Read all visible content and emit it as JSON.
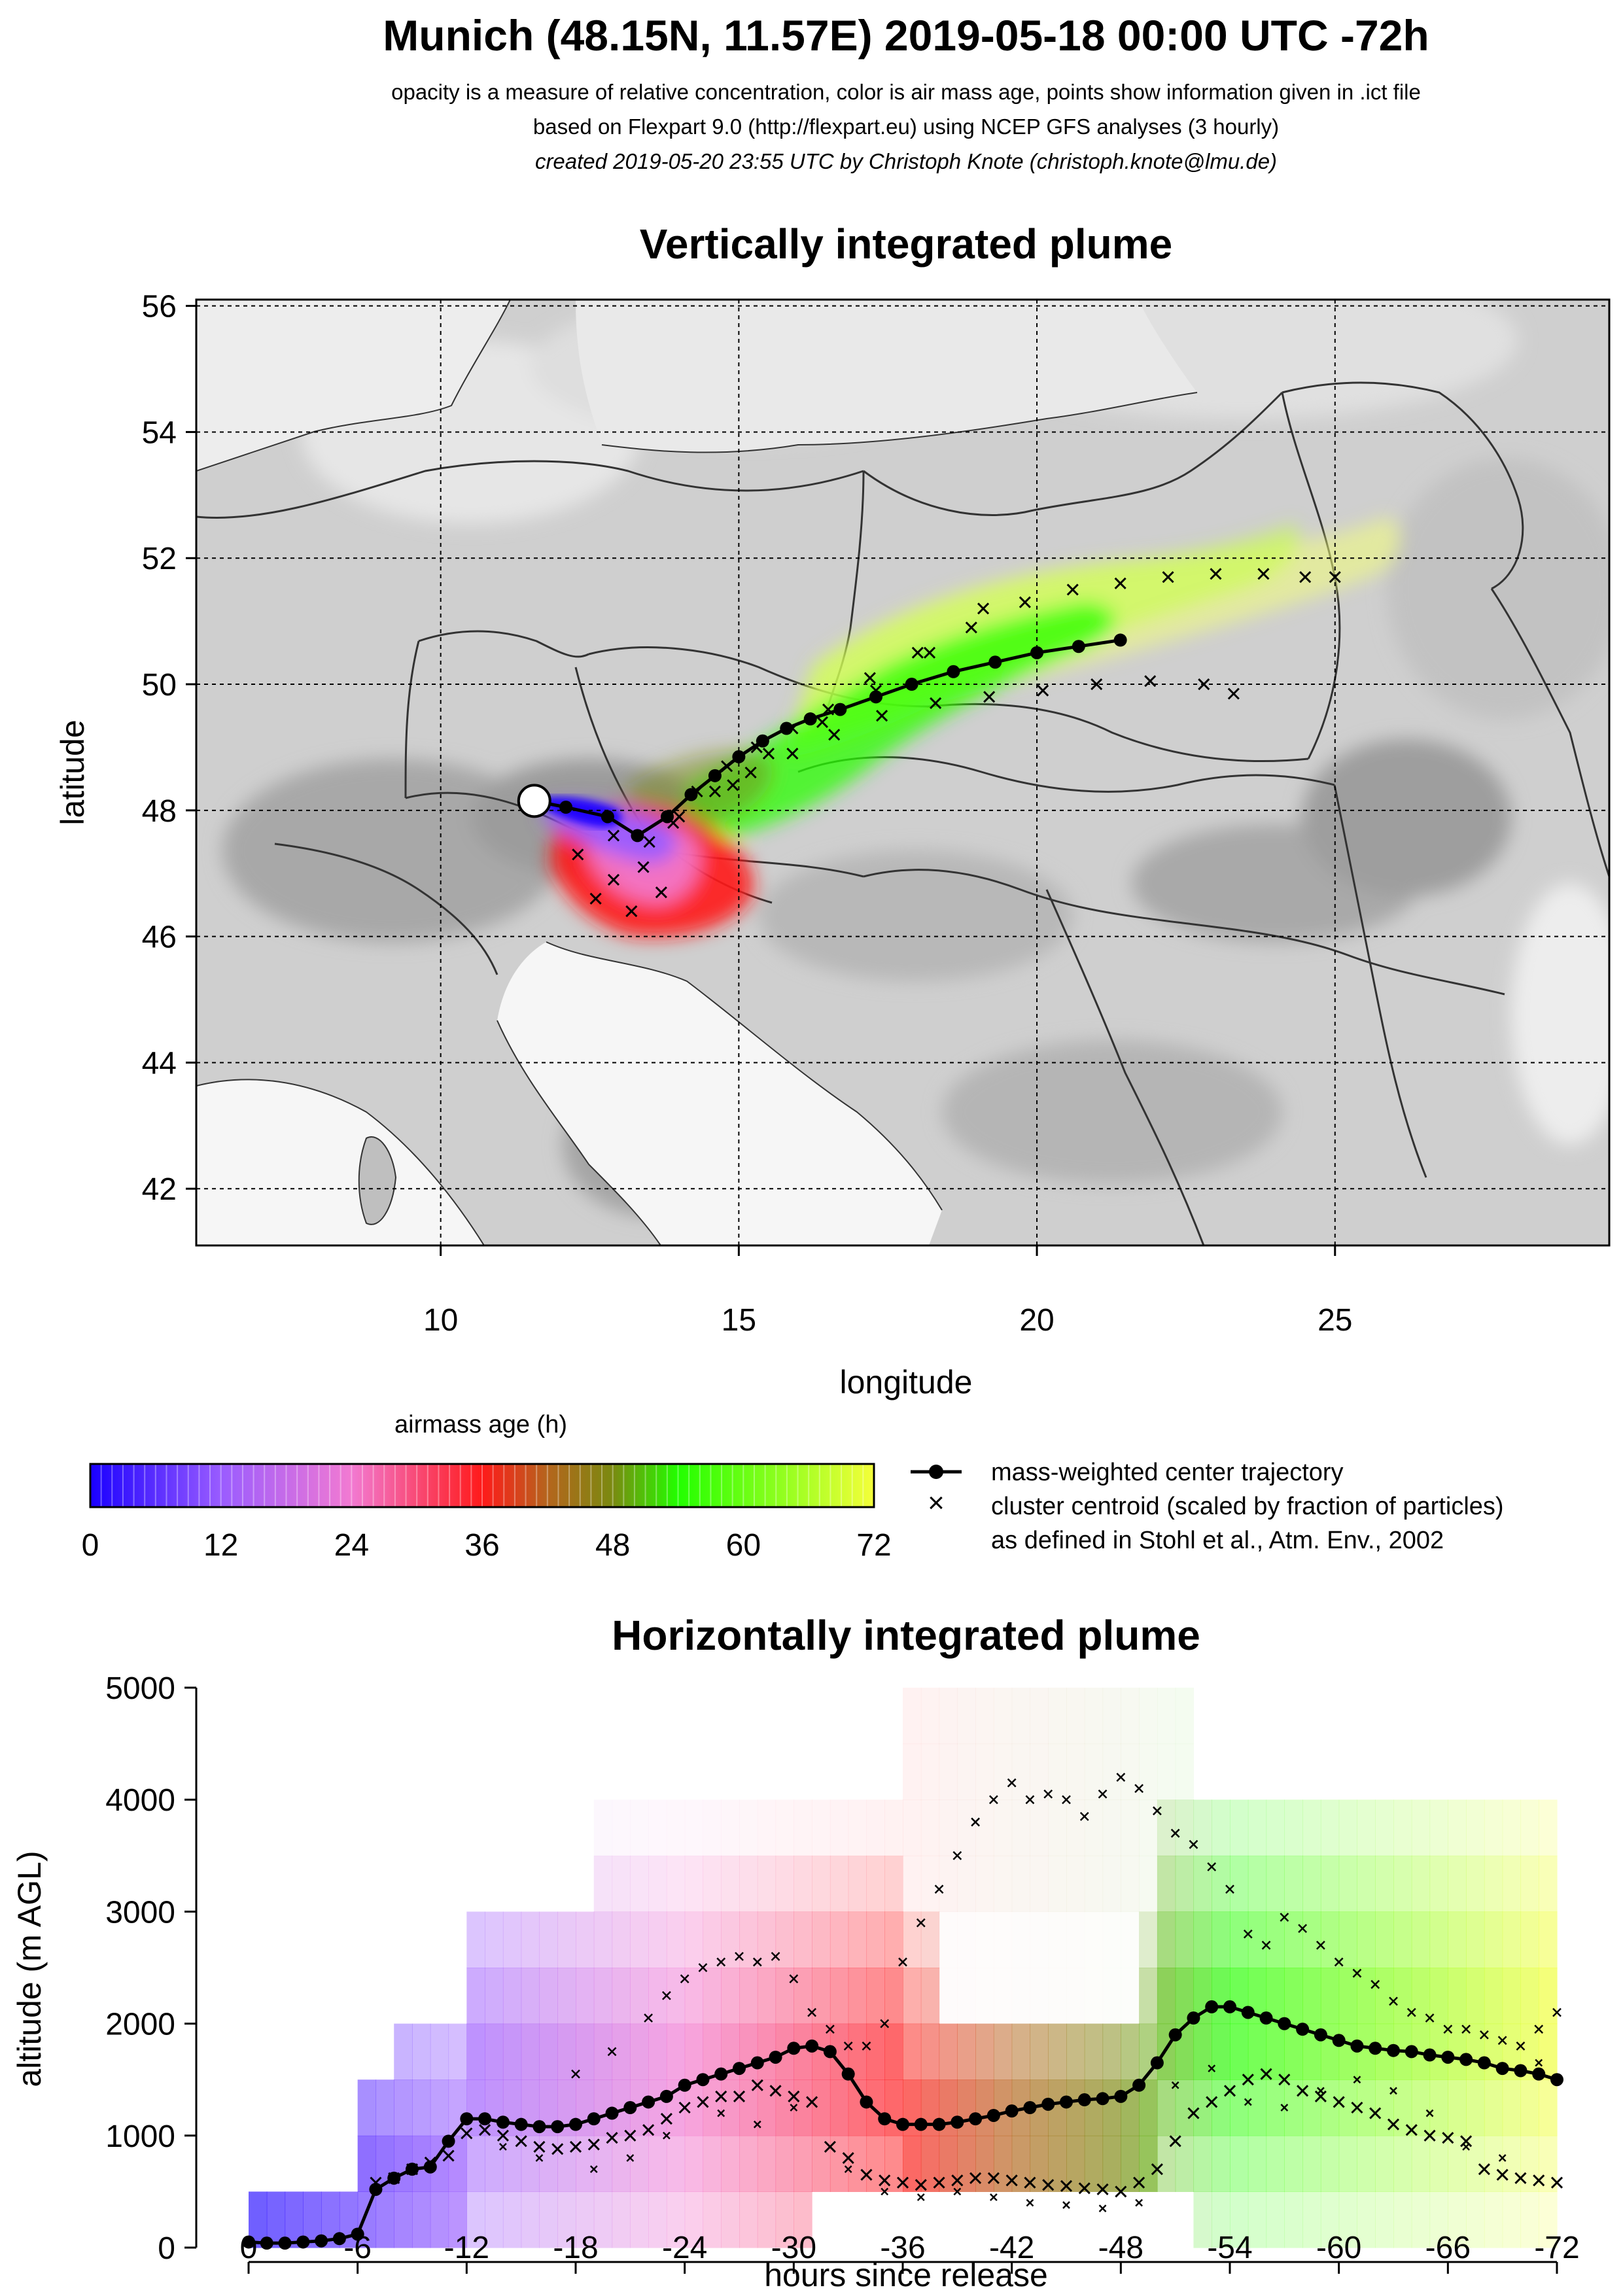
{
  "header": {
    "title": "Munich (48.15N, 11.57E) 2019-05-18 00:00 UTC -72h",
    "line1": "opacity is a measure of relative concentration, color is air mass age, points show information given in .ict file",
    "line2": "based on Flexpart 9.0 (http://flexpart.eu) using NCEP GFS analyses (3 hourly)",
    "line3": "created 2019-05-20 23:55 UTC by Christoph Knote (christoph.knote@lmu.de)"
  },
  "colors": {
    "age_0": "#1a00ff",
    "age_12": "#9a5cff",
    "age_24": "#f27ad2",
    "age_36": "#ff1a1a",
    "age_42": "#b5651d",
    "age_48": "#7a8a10",
    "age_54": "#22ff00",
    "age_72": "#f5ff3a",
    "map_background": "#cfcfcf",
    "sea": "#f4f4f4"
  },
  "chart_data": [
    {
      "type": "scatter",
      "title": "Vertically integrated plume",
      "xlabel": "longitude",
      "ylabel": "latitude",
      "xlim": [
        5.9,
        29.6
      ],
      "ylim": [
        41.1,
        56.1
      ],
      "xticks": [
        "10",
        "15",
        "20",
        "25"
      ],
      "xtick_values": [
        10,
        15,
        20,
        25
      ],
      "yticks": [
        "42",
        "44",
        "46",
        "48",
        "50",
        "52",
        "54",
        "56"
      ],
      "ytick_values": [
        42,
        44,
        46,
        48,
        50,
        52,
        54,
        56
      ],
      "grid": true,
      "release_point": {
        "lon": 11.57,
        "lat": 48.15
      },
      "center_trajectory": {
        "lon": [
          11.57,
          12.1,
          12.8,
          13.3,
          13.8,
          14.2,
          14.6,
          15.0,
          15.4,
          15.8,
          16.2,
          16.7,
          17.3,
          17.9,
          18.6,
          19.3,
          20.0,
          20.7,
          21.4
        ],
        "lat": [
          48.15,
          48.05,
          47.9,
          47.6,
          47.9,
          48.25,
          48.55,
          48.85,
          49.1,
          49.3,
          49.45,
          49.6,
          49.8,
          50.0,
          50.2,
          50.35,
          50.5,
          50.6,
          50.7
        ]
      },
      "cluster_centroids": {
        "lon": [
          12.3,
          12.9,
          13.4,
          13.9,
          14.3,
          14.8,
          15.3,
          15.9,
          16.5,
          17.2,
          18.0,
          18.9,
          19.8,
          20.6,
          21.4,
          22.2,
          23.0,
          23.8,
          24.5,
          25.0,
          14.0,
          14.6,
          15.2,
          15.9,
          16.6,
          17.4,
          18.3,
          19.2,
          20.1,
          21.0,
          21.9,
          22.8,
          23.3,
          14.9,
          15.5,
          16.4,
          17.3,
          18.2,
          19.1,
          12.6,
          13.2,
          13.7,
          12.9,
          13.5
        ],
        "lat": [
          47.3,
          46.9,
          47.1,
          47.8,
          48.3,
          48.7,
          49.0,
          49.3,
          49.6,
          50.1,
          50.5,
          50.9,
          51.3,
          51.5,
          51.6,
          51.7,
          51.75,
          51.75,
          51.7,
          51.7,
          47.9,
          48.3,
          48.6,
          48.9,
          49.2,
          49.5,
          49.7,
          49.8,
          49.9,
          50.0,
          50.05,
          50.0,
          49.85,
          48.4,
          48.9,
          49.4,
          49.9,
          50.5,
          51.2,
          46.6,
          46.4,
          46.7,
          47.6,
          47.5
        ]
      }
    },
    {
      "type": "area",
      "title": "Horizontally integrated plume",
      "xlabel": "hours since release",
      "ylabel": "altitude (m AGL)",
      "xlim": [
        0,
        -72
      ],
      "ylim": [
        0,
        5000
      ],
      "xticks": [
        "0",
        "-6",
        "-12",
        "-18",
        "-24",
        "-30",
        "-36",
        "-42",
        "-48",
        "-54",
        "-60",
        "-66",
        "-72"
      ],
      "xtick_values": [
        0,
        -6,
        -12,
        -18,
        -24,
        -30,
        -36,
        -42,
        -48,
        -54,
        -60,
        -66,
        -72
      ],
      "yticks": [
        "0",
        "1000",
        "2000",
        "3000",
        "4000",
        "5000"
      ],
      "ytick_values": [
        0,
        1000,
        2000,
        3000,
        4000,
        5000
      ],
      "center_trajectory": {
        "x": [
          0,
          -1,
          -2,
          -3,
          -4,
          -5,
          -6,
          -7,
          -8,
          -9,
          -10,
          -11,
          -12,
          -13,
          -14,
          -15,
          -16,
          -17,
          -18,
          -19,
          -20,
          -21,
          -22,
          -23,
          -24,
          -25,
          -26,
          -27,
          -28,
          -29,
          -30,
          -31,
          -32,
          -33,
          -34,
          -35,
          -36,
          -37,
          -38,
          -39,
          -40,
          -41,
          -42,
          -43,
          -44,
          -45,
          -46,
          -47,
          -48,
          -49,
          -50,
          -51,
          -52,
          -53,
          -54,
          -55,
          -56,
          -57,
          -58,
          -59,
          -60,
          -61,
          -62,
          -63,
          -64,
          -65,
          -66,
          -67,
          -68,
          -69,
          -70,
          -71,
          -72
        ],
        "y": [
          50,
          40,
          40,
          50,
          60,
          80,
          120,
          520,
          620,
          700,
          720,
          950,
          1150,
          1150,
          1120,
          1100,
          1080,
          1080,
          1100,
          1150,
          1200,
          1250,
          1300,
          1350,
          1450,
          1500,
          1550,
          1600,
          1650,
          1700,
          1780,
          1800,
          1750,
          1550,
          1300,
          1150,
          1100,
          1100,
          1100,
          1120,
          1150,
          1180,
          1220,
          1250,
          1280,
          1300,
          1320,
          1330,
          1350,
          1450,
          1650,
          1900,
          2050,
          2150,
          2150,
          2100,
          2050,
          2000,
          1950,
          1900,
          1850,
          1800,
          1780,
          1760,
          1750,
          1720,
          1700,
          1680,
          1650,
          1600,
          1580,
          1550,
          1500
        ]
      },
      "upper_centroids": {
        "x": [
          -18,
          -20,
          -22,
          -23,
          -24,
          -25,
          -26,
          -27,
          -28,
          -29,
          -30,
          -31,
          -32,
          -33,
          -34,
          -35,
          -36,
          -37,
          -38,
          -39,
          -40,
          -41,
          -42,
          -43,
          -44,
          -45,
          -46,
          -47,
          -48,
          -49,
          -50,
          -51,
          -52,
          -53,
          -54,
          -55,
          -56,
          -57,
          -58,
          -59,
          -60,
          -61,
          -62,
          -63,
          -64,
          -65,
          -66,
          -67,
          -68,
          -69,
          -70,
          -71,
          -72
        ],
        "y": [
          1550,
          1750,
          2050,
          2250,
          2400,
          2500,
          2550,
          2600,
          2550,
          2600,
          2400,
          2100,
          1950,
          1800,
          1800,
          2000,
          2550,
          2900,
          3200,
          3500,
          3800,
          4000,
          4150,
          4000,
          4050,
          4000,
          3850,
          4050,
          4200,
          4100,
          3900,
          3700,
          3600,
          3400,
          3200,
          2800,
          2700,
          2950,
          2850,
          2700,
          2550,
          2450,
          2350,
          2200,
          2100,
          2050,
          1950,
          1950,
          1900,
          1850,
          1800,
          1950,
          2100
        ]
      },
      "lower_centroids": {
        "x": [
          -7,
          -8,
          -9,
          -10,
          -11,
          -12,
          -13,
          -14,
          -15,
          -16,
          -17,
          -18,
          -19,
          -20,
          -21,
          -22,
          -23,
          -24,
          -25,
          -26,
          -27,
          -28,
          -29,
          -30,
          -31,
          -32,
          -33,
          -34,
          -35,
          -36,
          -37,
          -38,
          -39,
          -40,
          -41,
          -42,
          -43,
          -44,
          -45,
          -46,
          -47,
          -48,
          -49,
          -50,
          -51,
          -52,
          -53,
          -54,
          -55,
          -56,
          -57,
          -58,
          -59,
          -60,
          -61,
          -62,
          -63,
          -64,
          -65,
          -66,
          -67,
          -68,
          -69,
          -70,
          -71,
          -72
        ],
        "y": [
          580,
          620,
          700,
          760,
          820,
          1020,
          1050,
          1000,
          950,
          900,
          880,
          900,
          920,
          980,
          1000,
          1050,
          1150,
          1250,
          1300,
          1350,
          1350,
          1450,
          1400,
          1350,
          1300,
          900,
          800,
          650,
          600,
          580,
          560,
          580,
          600,
          620,
          620,
          600,
          580,
          560,
          550,
          530,
          520,
          500,
          580,
          700,
          950,
          1200,
          1300,
          1400,
          1500,
          1550,
          1500,
          1400,
          1350,
          1300,
          1250,
          1200,
          1100,
          1050,
          1000,
          980,
          950,
          700,
          650,
          620,
          600,
          580
        ]
      },
      "extra_centroids": {
        "x": [
          -14,
          -16,
          -19,
          -21,
          -23,
          -26,
          -28,
          -30,
          -33,
          -35,
          -37,
          -39,
          -41,
          -43,
          -45,
          -47,
          -49,
          -51,
          -53,
          -55,
          -57,
          -59,
          -61,
          -63,
          -65,
          -67,
          -69,
          -71
        ],
        "y": [
          900,
          800,
          700,
          800,
          1000,
          1200,
          1100,
          1250,
          700,
          500,
          450,
          500,
          450,
          400,
          380,
          350,
          400,
          1450,
          1600,
          1300,
          1250,
          1400,
          1500,
          1400,
          1200,
          900,
          800,
          1650
        ]
      }
    }
  ],
  "legend": {
    "colorbar_title": "airmass age (h)",
    "colorbar_ticks": [
      "0",
      "12",
      "24",
      "36",
      "48",
      "60",
      "72"
    ],
    "colorbar_tick_values": [
      0,
      12,
      24,
      36,
      48,
      60,
      72
    ],
    "traj_label": "mass-weighted center trajectory",
    "cluster_label_1": "cluster centroid (scaled by fraction of particles)",
    "cluster_label_2": "as defined in Stohl et al., Atm. Env., 2002"
  }
}
